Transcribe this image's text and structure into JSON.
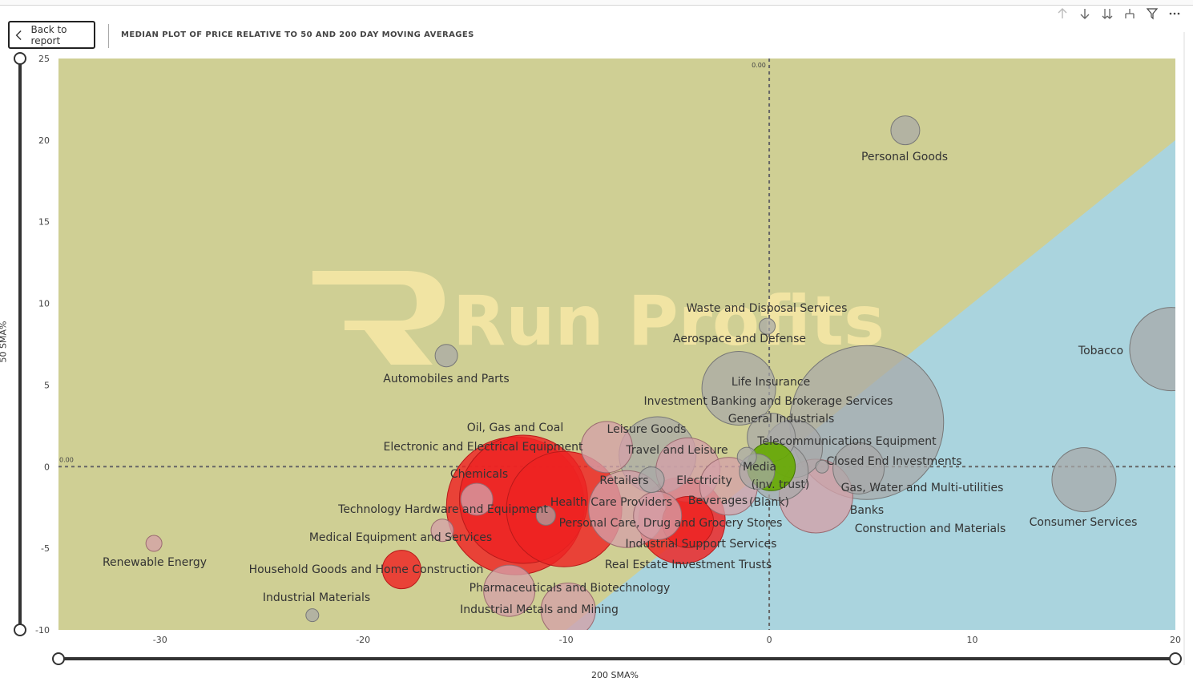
{
  "header": {
    "back_label": "Back to report",
    "title": "MEDIAN PLOT OF PRICE RELATIVE TO 50 AND 200 DAY MOVING AVERAGES"
  },
  "toolbar": {
    "icons": [
      "arrow-up-icon",
      "arrow-down-icon",
      "double-arrow-down-icon",
      "expand-hierarchy-icon",
      "filter-icon",
      "more-options-icon"
    ]
  },
  "watermark": {
    "text": "Run Profits"
  },
  "colors": {
    "above_band": "#cfcf94",
    "below_band": "#aad4de",
    "positive": "#a0a0a0",
    "negative": "#ee2222",
    "neutral": "#66aa00"
  },
  "chart_data": {
    "type": "scatter",
    "xlabel": "200 SMA%",
    "ylabel": "50 SMA%",
    "xlim": [
      -35,
      20
    ],
    "ylim": [
      -10,
      25
    ],
    "x_ticks": [
      "-30",
      "-20",
      "-10",
      "0",
      "10",
      "20"
    ],
    "y_ticks": [
      "25",
      "20",
      "15",
      "10",
      "5",
      "0",
      "-5",
      "-10"
    ],
    "reference_lines": {
      "x_label": "0.00",
      "y_label": "0.00"
    },
    "points": [
      {
        "label": "Personal Goods",
        "x": 6.7,
        "y": 20.6,
        "size": 18,
        "group": "gray"
      },
      {
        "label": "Tobacco",
        "x": 19.8,
        "y": 7.2,
        "size": 52,
        "group": "gray"
      },
      {
        "label": "Waste and Disposal Services",
        "x": -0.1,
        "y": 8.6,
        "size": 10,
        "group": "gray"
      },
      {
        "label": "Aerospace and Defense",
        "x": -1.5,
        "y": 4.8,
        "size": 46,
        "group": "gray"
      },
      {
        "label": "Automobiles and Parts",
        "x": -15.9,
        "y": 6.8,
        "size": 14,
        "group": "gray"
      },
      {
        "label": "Life Insurance",
        "x": 0.1,
        "y": 1.8,
        "size": 30,
        "group": "gray"
      },
      {
        "label": "Investment Banking and Brokerage Services",
        "x": 4.8,
        "y": 2.7,
        "size": 96,
        "group": "gray"
      },
      {
        "label": "General Industrials",
        "x": 1.2,
        "y": 1.1,
        "size": 36,
        "group": "gray"
      },
      {
        "label": "Telecommunications Equipment",
        "x": 4.4,
        "y": -0.1,
        "size": 32,
        "group": "gray"
      },
      {
        "label": "Closed End Investments",
        "x": 2.6,
        "y": 0.0,
        "size": 8,
        "group": "gray"
      },
      {
        "label": "Gas, Water and Multi-utilities",
        "x": 2.3,
        "y": -1.8,
        "size": 46,
        "group": "pink"
      },
      {
        "label": "Banks",
        "x": 0.5,
        "y": -0.3,
        "size": 36,
        "group": "gray"
      },
      {
        "label": "Consumer Services",
        "x": 15.5,
        "y": -0.8,
        "size": 40,
        "group": "gray"
      },
      {
        "label": "Media",
        "x": 0.1,
        "y": 0.0,
        "size": 30,
        "group": "green"
      },
      {
        "label": "(inv. trust)",
        "x": -1.1,
        "y": 0.6,
        "size": 12,
        "group": "gray"
      },
      {
        "label": "(Blank)",
        "x": -0.6,
        "y": -0.3,
        "size": 22,
        "group": "gray"
      },
      {
        "label": "Leisure Goods",
        "x": -8.0,
        "y": 1.2,
        "size": 32,
        "group": "pink"
      },
      {
        "label": "Travel and Leisure",
        "x": -5.5,
        "y": 0.7,
        "size": 48,
        "group": "gray"
      },
      {
        "label": "Retailers",
        "x": -5.8,
        "y": -0.8,
        "size": 16,
        "group": "gray"
      },
      {
        "label": "Electricity",
        "x": -4.0,
        "y": -0.2,
        "size": 40,
        "group": "pink"
      },
      {
        "label": "Beverages",
        "x": -2.0,
        "y": -1.2,
        "size": 36,
        "group": "pink"
      },
      {
        "label": "Health Care Providers",
        "x": -7.0,
        "y": -2.6,
        "size": 48,
        "group": "pink"
      },
      {
        "label": "Personal Care, Drug and Grocery Stores",
        "x": -4.3,
        "y": -3.3,
        "size": 54,
        "group": "red"
      },
      {
        "label": "Industrial Support Services",
        "x": -4.0,
        "y": -3.4,
        "size": 32,
        "group": "red"
      },
      {
        "label": "Real Estate Investment Trusts",
        "x": -5.5,
        "y": -3.0,
        "size": 30,
        "group": "pink"
      },
      {
        "label": "Oil, Gas and Coal",
        "x": -12.5,
        "y": -2.4,
        "size": 86,
        "group": "red"
      },
      {
        "label": "Electronic and Electrical Equipment",
        "x": -12.1,
        "y": -2.0,
        "size": 80,
        "group": "red"
      },
      {
        "label": "Chemicals",
        "x": -10.1,
        "y": -2.6,
        "size": 72,
        "group": "red"
      },
      {
        "label": "Technology Hardware and Equipment",
        "x": -14.4,
        "y": -2.0,
        "size": 20,
        "group": "pink"
      },
      {
        "label": "Medical Equipment and Services",
        "x": -16.1,
        "y": -3.9,
        "size": 14,
        "group": "pink"
      },
      {
        "label": "Renewable Energy",
        "x": -30.3,
        "y": -4.7,
        "size": 10,
        "group": "pink"
      },
      {
        "label": "Household Goods and Home Construction",
        "x": -18.1,
        "y": -6.3,
        "size": 24,
        "group": "red"
      },
      {
        "label": "Pharmaceuticals and Biotechnology",
        "x": -12.8,
        "y": -7.6,
        "size": 32,
        "group": "pink"
      },
      {
        "label": "Industrial Metals and Mining",
        "x": -9.9,
        "y": -8.8,
        "size": 34,
        "group": "pink"
      },
      {
        "label": "Industrial Materials",
        "x": -22.5,
        "y": -9.1,
        "size": 8,
        "group": "gray"
      },
      {
        "label": "Construction and Materials",
        "x": -11.0,
        "y": -3.0,
        "size": 12,
        "group": "gray"
      }
    ]
  }
}
